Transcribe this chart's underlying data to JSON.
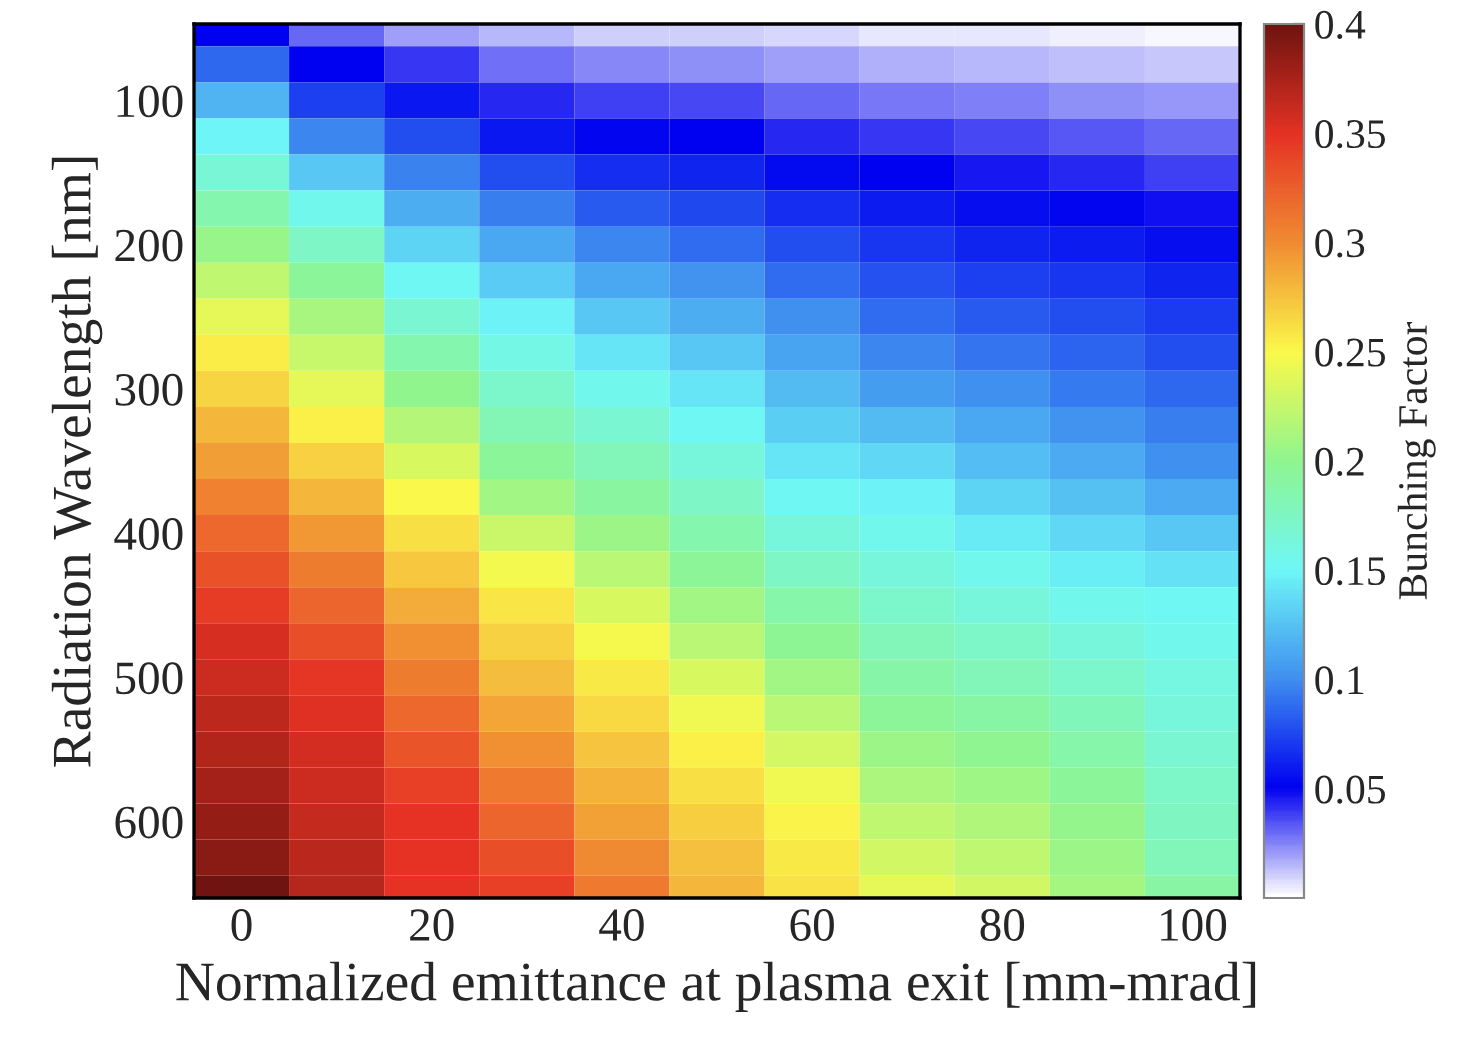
{
  "chart_data": {
    "type": "heatmap",
    "xlabel": "Normalized emittance at plasma exit [mm-mrad]",
    "ylabel": "Radiation Wavelength [nm]",
    "clabel": "Bunching Factor",
    "x": [
      0,
      10,
      20,
      30,
      40,
      50,
      60,
      70,
      80,
      90,
      100
    ],
    "y": [
      50,
      75,
      100,
      125,
      150,
      175,
      200,
      225,
      250,
      275,
      300,
      325,
      350,
      375,
      400,
      425,
      450,
      475,
      500,
      525,
      550,
      575,
      600,
      625,
      650
    ],
    "xlim": [
      -5,
      105
    ],
    "ylim": [
      653,
      47
    ],
    "xticks": [
      0,
      20,
      40,
      60,
      80,
      100
    ],
    "yticks": [
      100,
      200,
      300,
      400,
      500,
      600
    ],
    "clim": [
      0,
      0.4
    ],
    "cticks": [
      0.05,
      0.1,
      0.15,
      0.2,
      0.25,
      0.3,
      0.35,
      0.4
    ],
    "cells": [
      [
        0.05,
        0.03,
        0.02,
        0.015,
        0.01,
        0.01,
        0.008,
        0.006,
        0.005,
        0.004,
        0.003
      ],
      [
        0.086,
        0.051,
        0.04,
        0.029,
        0.024,
        0.023,
        0.02,
        0.017,
        0.015,
        0.014,
        0.012
      ],
      [
        0.118,
        0.072,
        0.059,
        0.043,
        0.038,
        0.036,
        0.031,
        0.028,
        0.025,
        0.023,
        0.021
      ],
      [
        0.149,
        0.098,
        0.078,
        0.059,
        0.052,
        0.05,
        0.043,
        0.04,
        0.036,
        0.033,
        0.03
      ],
      [
        0.167,
        0.128,
        0.096,
        0.077,
        0.067,
        0.063,
        0.054,
        0.051,
        0.046,
        0.043,
        0.039
      ],
      [
        0.185,
        0.155,
        0.115,
        0.094,
        0.082,
        0.076,
        0.066,
        0.06,
        0.055,
        0.052,
        0.048
      ],
      [
        0.204,
        0.175,
        0.134,
        0.112,
        0.097,
        0.089,
        0.077,
        0.07,
        0.064,
        0.06,
        0.056
      ],
      [
        0.222,
        0.195,
        0.152,
        0.129,
        0.112,
        0.103,
        0.089,
        0.079,
        0.073,
        0.069,
        0.063
      ],
      [
        0.24,
        0.211,
        0.168,
        0.147,
        0.127,
        0.115,
        0.1,
        0.089,
        0.082,
        0.077,
        0.071
      ],
      [
        0.255,
        0.226,
        0.185,
        0.159,
        0.142,
        0.128,
        0.11,
        0.098,
        0.091,
        0.085,
        0.078
      ],
      [
        0.267,
        0.24,
        0.201,
        0.171,
        0.156,
        0.141,
        0.121,
        0.107,
        0.1,
        0.093,
        0.086
      ],
      [
        0.28,
        0.254,
        0.217,
        0.182,
        0.168,
        0.153,
        0.131,
        0.121,
        0.111,
        0.102,
        0.094
      ],
      [
        0.292,
        0.268,
        0.233,
        0.194,
        0.18,
        0.164,
        0.142,
        0.135,
        0.123,
        0.113,
        0.101
      ],
      [
        0.305,
        0.281,
        0.249,
        0.209,
        0.192,
        0.175,
        0.152,
        0.147,
        0.134,
        0.124,
        0.114
      ],
      [
        0.319,
        0.295,
        0.261,
        0.228,
        0.205,
        0.185,
        0.163,
        0.155,
        0.145,
        0.135,
        0.127
      ],
      [
        0.332,
        0.308,
        0.273,
        0.246,
        0.219,
        0.196,
        0.174,
        0.163,
        0.155,
        0.146,
        0.14
      ],
      [
        0.345,
        0.321,
        0.285,
        0.258,
        0.234,
        0.208,
        0.186,
        0.171,
        0.164,
        0.155,
        0.152
      ],
      [
        0.355,
        0.334,
        0.297,
        0.268,
        0.248,
        0.22,
        0.197,
        0.18,
        0.173,
        0.163,
        0.156
      ],
      [
        0.36,
        0.347,
        0.308,
        0.278,
        0.257,
        0.233,
        0.208,
        0.188,
        0.181,
        0.171,
        0.16
      ],
      [
        0.366,
        0.353,
        0.32,
        0.288,
        0.265,
        0.245,
        0.22,
        0.196,
        0.19,
        0.179,
        0.164
      ],
      [
        0.371,
        0.357,
        0.331,
        0.298,
        0.274,
        0.254,
        0.232,
        0.205,
        0.199,
        0.187,
        0.168
      ],
      [
        0.377,
        0.36,
        0.342,
        0.31,
        0.282,
        0.261,
        0.244,
        0.214,
        0.207,
        0.195,
        0.172
      ],
      [
        0.383,
        0.364,
        0.35,
        0.321,
        0.29,
        0.269,
        0.252,
        0.222,
        0.215,
        0.202,
        0.176
      ],
      [
        0.389,
        0.368,
        0.35,
        0.333,
        0.301,
        0.276,
        0.257,
        0.231,
        0.223,
        0.206,
        0.181
      ],
      [
        0.4,
        0.37,
        0.35,
        0.342,
        0.31,
        0.28,
        0.26,
        0.24,
        0.23,
        0.21,
        0.19
      ]
    ]
  }
}
